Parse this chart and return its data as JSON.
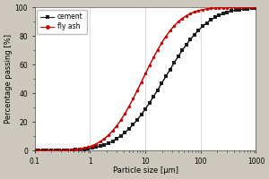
{
  "title": "",
  "xlabel": "Particle size [μm]",
  "ylabel": "Percentage passing [%]",
  "xlim": [
    0.1,
    1000
  ],
  "ylim": [
    0,
    100
  ],
  "yticks": [
    0,
    20,
    40,
    60,
    80,
    100
  ],
  "background_color": "#cdc8be",
  "plot_bg_color": "#ffffff",
  "cement_color": "#1a1a1a",
  "flyash_color": "#cc0000",
  "cement_label": "cement",
  "flyash_label": "fly ash",
  "cement_d50": 22,
  "flyash_d50": 9,
  "cement_sigma": 0.62,
  "flyash_sigma": 0.5,
  "n_markers": 55,
  "marker_size": 2.5,
  "line_width": 0.8
}
